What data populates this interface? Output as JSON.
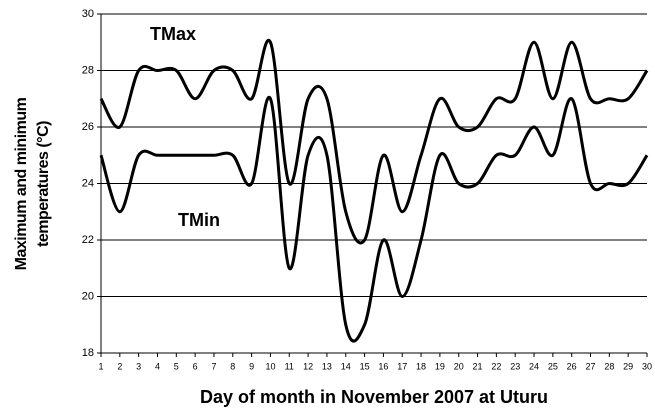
{
  "chart_data": {
    "type": "line",
    "xlabel": "Day of month in November 2007 at Uturu",
    "ylabel": [
      "Maximum and minimum",
      "temperatures (°C)"
    ],
    "x": [
      1,
      2,
      3,
      4,
      5,
      6,
      7,
      8,
      9,
      10,
      11,
      12,
      13,
      14,
      15,
      16,
      17,
      18,
      19,
      20,
      21,
      22,
      23,
      24,
      25,
      26,
      27,
      28,
      29,
      30
    ],
    "series": [
      {
        "name": "TMax",
        "color": "#000000",
        "values": [
          27,
          26,
          28,
          28,
          28,
          27,
          28,
          28,
          27,
          29,
          24,
          27,
          27,
          23,
          22,
          25,
          23,
          25,
          27,
          26,
          26,
          27,
          27,
          29,
          27,
          29,
          27,
          27,
          27,
          28
        ]
      },
      {
        "name": "TMin",
        "color": "#000000",
        "values": [
          25,
          23,
          25,
          25,
          25,
          25,
          25,
          25,
          24,
          27,
          21,
          25,
          25,
          19,
          19,
          22,
          20,
          22,
          25,
          24,
          24,
          25,
          25,
          26,
          25,
          27,
          24,
          24,
          24,
          25
        ]
      }
    ],
    "xlim": [
      1,
      30
    ],
    "xticks": [
      1,
      2,
      3,
      4,
      5,
      6,
      7,
      8,
      9,
      10,
      11,
      12,
      13,
      14,
      15,
      16,
      17,
      18,
      19,
      20,
      21,
      22,
      23,
      24,
      25,
      26,
      27,
      28,
      29,
      30
    ],
    "ylim": [
      18,
      30
    ],
    "yticks": [
      18,
      20,
      22,
      24,
      26,
      28,
      30
    ],
    "grid": true
  }
}
